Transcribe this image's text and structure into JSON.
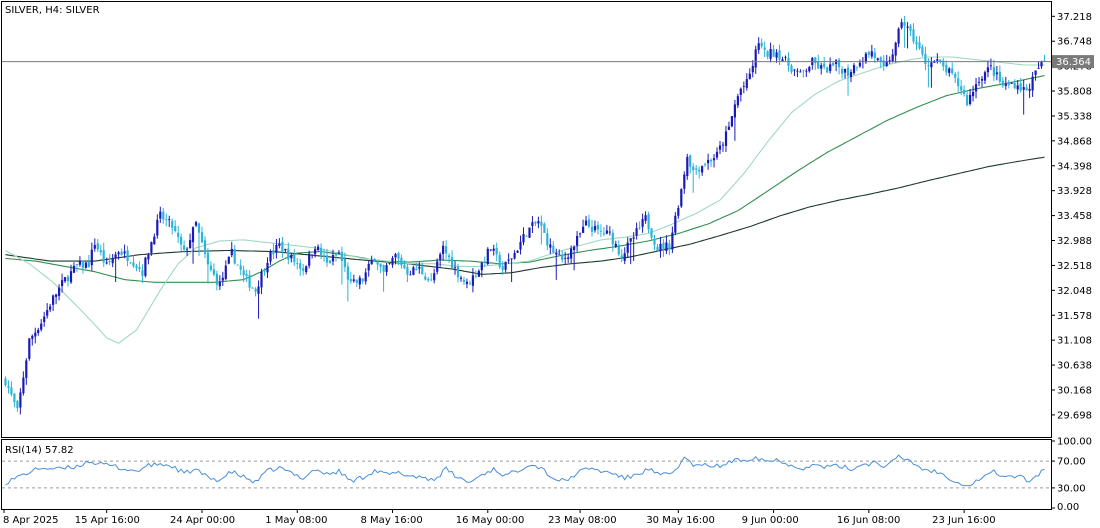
{
  "header": {
    "symbol_title": "SILVER, H4:  SILVER"
  },
  "current_price": "36.364",
  "colors": {
    "bull": "#1a1ab8",
    "bear": "#2bb4d8",
    "ma_fast": "#9fd9c0",
    "ma_mid": "#2f8f50",
    "ma_slow": "#1f3a2a",
    "rsi_line": "#4a8fd9",
    "price_line": "#7a7a7a",
    "frame": "#000000"
  },
  "chart_data": [
    {
      "type": "candlestick",
      "title": "SILVER, H4:  SILVER",
      "ylim": [
        29.3,
        37.45
      ],
      "yticks": [
        "37.218",
        "36.748",
        "36.278",
        "35.808",
        "35.338",
        "34.868",
        "34.398",
        "33.928",
        "33.458",
        "32.988",
        "32.518",
        "32.048",
        "31.578",
        "31.108",
        "30.638",
        "30.168",
        "29.698"
      ],
      "xticks": [
        "8 Apr 2025",
        "15 Apr 16:00",
        "24 Apr 00:00",
        "1 May 08:00",
        "8 May 16:00",
        "16 May 00:00",
        "23 May 08:00",
        "30 May 16:00",
        "9 Jun 00:00",
        "16 Jun 08:00",
        "23 Jun 16:00"
      ],
      "close_path": [
        [
          0,
          30.35
        ],
        [
          4,
          29.75
        ],
        [
          8,
          31.1
        ],
        [
          12,
          31.45
        ],
        [
          16,
          31.9
        ],
        [
          20,
          32.25
        ],
        [
          24,
          32.5
        ],
        [
          28,
          32.55
        ],
        [
          30,
          32.95
        ],
        [
          34,
          32.5
        ],
        [
          38,
          32.8
        ],
        [
          42,
          32.65
        ],
        [
          46,
          32.4
        ],
        [
          50,
          33.15
        ],
        [
          52,
          33.45
        ],
        [
          56,
          33.25
        ],
        [
          60,
          32.75
        ],
        [
          64,
          33.3
        ],
        [
          68,
          32.5
        ],
        [
          72,
          32.15
        ],
        [
          76,
          32.75
        ],
        [
          80,
          32.3
        ],
        [
          84,
          32.05
        ],
        [
          88,
          32.65
        ],
        [
          92,
          32.9
        ],
        [
          96,
          32.65
        ],
        [
          100,
          32.45
        ],
        [
          104,
          32.9
        ],
        [
          108,
          32.55
        ],
        [
          112,
          32.75
        ],
        [
          116,
          32.15
        ],
        [
          120,
          32.25
        ],
        [
          124,
          32.7
        ],
        [
          127,
          32.35
        ],
        [
          131,
          32.7
        ],
        [
          135,
          32.4
        ],
        [
          139,
          32.45
        ],
        [
          143,
          32.2
        ],
        [
          147,
          32.85
        ],
        [
          151,
          32.45
        ],
        [
          155,
          32.15
        ],
        [
          159,
          32.45
        ],
        [
          163,
          32.85
        ],
        [
          167,
          32.45
        ],
        [
          171,
          32.75
        ],
        [
          175,
          33.15
        ],
        [
          179,
          33.35
        ],
        [
          183,
          32.85
        ],
        [
          187,
          32.6
        ],
        [
          191,
          32.9
        ],
        [
          195,
          33.3
        ],
        [
          199,
          33.15
        ],
        [
          203,
          33.1
        ],
        [
          207,
          32.7
        ],
        [
          211,
          33.05
        ],
        [
          215,
          33.4
        ],
        [
          219,
          32.85
        ],
        [
          223,
          32.9
        ],
        [
          227,
          33.95
        ],
        [
          229,
          34.6
        ],
        [
          231,
          34.3
        ],
        [
          235,
          34.45
        ],
        [
          239,
          34.6
        ],
        [
          243,
          35.1
        ],
        [
          245,
          35.55
        ],
        [
          247,
          35.85
        ],
        [
          249,
          35.95
        ],
        [
          251,
          36.3
        ],
        [
          253,
          36.75
        ],
        [
          255,
          36.5
        ],
        [
          259,
          36.55
        ],
        [
          263,
          36.3
        ],
        [
          267,
          36.1
        ],
        [
          271,
          36.35
        ],
        [
          275,
          36.2
        ],
        [
          279,
          36.3
        ],
        [
          283,
          36.15
        ],
        [
          287,
          36.4
        ],
        [
          291,
          36.55
        ],
        [
          295,
          36.2
        ],
        [
          299,
          36.65
        ],
        [
          301,
          37.15
        ],
        [
          305,
          36.8
        ],
        [
          309,
          36.35
        ],
        [
          313,
          36.35
        ],
        [
          317,
          36.15
        ],
        [
          321,
          35.85
        ],
        [
          323,
          35.6
        ],
        [
          327,
          36.05
        ],
        [
          331,
          36.25
        ],
        [
          335,
          35.9
        ],
        [
          339,
          35.95
        ],
        [
          343,
          35.8
        ],
        [
          347,
          36.25
        ],
        [
          349,
          36.364
        ]
      ],
      "ma_fast": [
        [
          0,
          32.8
        ],
        [
          8,
          32.55
        ],
        [
          16,
          32.2
        ],
        [
          24,
          31.75
        ],
        [
          30,
          31.4
        ],
        [
          34,
          31.15
        ],
        [
          38,
          31.05
        ],
        [
          44,
          31.3
        ],
        [
          52,
          32.05
        ],
        [
          58,
          32.55
        ],
        [
          64,
          32.85
        ],
        [
          72,
          32.98
        ],
        [
          80,
          33.0
        ],
        [
          88,
          32.95
        ],
        [
          96,
          32.9
        ],
        [
          104,
          32.85
        ],
        [
          112,
          32.75
        ],
        [
          120,
          32.65
        ],
        [
          128,
          32.6
        ],
        [
          136,
          32.55
        ],
        [
          144,
          32.55
        ],
        [
          152,
          32.5
        ],
        [
          160,
          32.5
        ],
        [
          168,
          32.55
        ],
        [
          176,
          32.6
        ],
        [
          184,
          32.75
        ],
        [
          192,
          32.88
        ],
        [
          200,
          33.0
        ],
        [
          208,
          33.05
        ],
        [
          216,
          33.12
        ],
        [
          224,
          33.3
        ],
        [
          232,
          33.5
        ],
        [
          240,
          33.75
        ],
        [
          248,
          34.25
        ],
        [
          256,
          34.85
        ],
        [
          264,
          35.4
        ],
        [
          272,
          35.75
        ],
        [
          280,
          36.0
        ],
        [
          288,
          36.15
        ],
        [
          296,
          36.3
        ],
        [
          304,
          36.4
        ],
        [
          310,
          36.45
        ],
        [
          318,
          36.45
        ],
        [
          326,
          36.4
        ],
        [
          334,
          36.35
        ],
        [
          342,
          36.3
        ],
        [
          349,
          36.3
        ]
      ],
      "ma_mid": [
        [
          0,
          32.65
        ],
        [
          10,
          32.6
        ],
        [
          20,
          32.5
        ],
        [
          30,
          32.4
        ],
        [
          40,
          32.25
        ],
        [
          50,
          32.2
        ],
        [
          60,
          32.2
        ],
        [
          70,
          32.2
        ],
        [
          80,
          32.25
        ],
        [
          86,
          32.4
        ],
        [
          92,
          32.6
        ],
        [
          98,
          32.75
        ],
        [
          106,
          32.78
        ],
        [
          116,
          32.7
        ],
        [
          126,
          32.6
        ],
        [
          136,
          32.58
        ],
        [
          146,
          32.62
        ],
        [
          156,
          32.6
        ],
        [
          166,
          32.55
        ],
        [
          176,
          32.58
        ],
        [
          186,
          32.7
        ],
        [
          196,
          32.8
        ],
        [
          206,
          32.88
        ],
        [
          216,
          32.98
        ],
        [
          226,
          33.12
        ],
        [
          236,
          33.3
        ],
        [
          246,
          33.55
        ],
        [
          256,
          33.92
        ],
        [
          266,
          34.3
        ],
        [
          276,
          34.65
        ],
        [
          286,
          34.95
        ],
        [
          296,
          35.25
        ],
        [
          306,
          35.5
        ],
        [
          316,
          35.72
        ],
        [
          326,
          35.85
        ],
        [
          336,
          35.95
        ],
        [
          349,
          36.1
        ]
      ],
      "ma_slow": [
        [
          0,
          32.72
        ],
        [
          15,
          32.6
        ],
        [
          30,
          32.6
        ],
        [
          45,
          32.72
        ],
        [
          60,
          32.78
        ],
        [
          75,
          32.8
        ],
        [
          90,
          32.78
        ],
        [
          105,
          32.7
        ],
        [
          120,
          32.62
        ],
        [
          135,
          32.55
        ],
        [
          150,
          32.45
        ],
        [
          160,
          32.35
        ],
        [
          170,
          32.38
        ],
        [
          180,
          32.48
        ],
        [
          190,
          32.55
        ],
        [
          200,
          32.6
        ],
        [
          210,
          32.68
        ],
        [
          220,
          32.8
        ],
        [
          230,
          32.92
        ],
        [
          240,
          33.08
        ],
        [
          250,
          33.25
        ],
        [
          260,
          33.45
        ],
        [
          270,
          33.62
        ],
        [
          280,
          33.75
        ],
        [
          290,
          33.86
        ],
        [
          300,
          33.98
        ],
        [
          310,
          34.12
        ],
        [
          320,
          34.25
        ],
        [
          330,
          34.38
        ],
        [
          340,
          34.48
        ],
        [
          349,
          34.56
        ]
      ]
    },
    {
      "type": "line",
      "title": "RSI(14) 57.82",
      "ylim": [
        0,
        100
      ],
      "yticks": [
        "100.00",
        "70.00",
        "30.00",
        "0.00"
      ],
      "levels": [
        70,
        30
      ],
      "values_path": [
        [
          0,
          38
        ],
        [
          6,
          50
        ],
        [
          12,
          60
        ],
        [
          18,
          58
        ],
        [
          24,
          62
        ],
        [
          28,
          70
        ],
        [
          32,
          65
        ],
        [
          36,
          63
        ],
        [
          40,
          58
        ],
        [
          44,
          55
        ],
        [
          48,
          63
        ],
        [
          52,
          66
        ],
        [
          56,
          62
        ],
        [
          60,
          52
        ],
        [
          64,
          57
        ],
        [
          68,
          45
        ],
        [
          72,
          42
        ],
        [
          76,
          54
        ],
        [
          80,
          46
        ],
        [
          84,
          38
        ],
        [
          88,
          55
        ],
        [
          92,
          60
        ],
        [
          96,
          52
        ],
        [
          100,
          45
        ],
        [
          104,
          58
        ],
        [
          108,
          50
        ],
        [
          112,
          55
        ],
        [
          116,
          40
        ],
        [
          120,
          46
        ],
        [
          124,
          56
        ],
        [
          128,
          50
        ],
        [
          132,
          52
        ],
        [
          136,
          48
        ],
        [
          140,
          46
        ],
        [
          144,
          42
        ],
        [
          148,
          58
        ],
        [
          152,
          45
        ],
        [
          156,
          38
        ],
        [
          160,
          50
        ],
        [
          164,
          58
        ],
        [
          168,
          48
        ],
        [
          172,
          56
        ],
        [
          176,
          66
        ],
        [
          180,
          60
        ],
        [
          184,
          44
        ],
        [
          188,
          40
        ],
        [
          192,
          52
        ],
        [
          196,
          60
        ],
        [
          200,
          55
        ],
        [
          204,
          52
        ],
        [
          208,
          44
        ],
        [
          212,
          50
        ],
        [
          216,
          58
        ],
        [
          220,
          48
        ],
        [
          224,
          52
        ],
        [
          228,
          74
        ],
        [
          232,
          62
        ],
        [
          236,
          64
        ],
        [
          240,
          62
        ],
        [
          244,
          70
        ],
        [
          248,
          72
        ],
        [
          252,
          76
        ],
        [
          256,
          70
        ],
        [
          260,
          72
        ],
        [
          264,
          63
        ],
        [
          268,
          60
        ],
        [
          272,
          64
        ],
        [
          276,
          61
        ],
        [
          280,
          63
        ],
        [
          284,
          58
        ],
        [
          288,
          65
        ],
        [
          292,
          68
        ],
        [
          296,
          62
        ],
        [
          300,
          76
        ],
        [
          304,
          70
        ],
        [
          308,
          58
        ],
        [
          312,
          55
        ],
        [
          316,
          48
        ],
        [
          320,
          38
        ],
        [
          324,
          34
        ],
        [
          328,
          46
        ],
        [
          332,
          54
        ],
        [
          336,
          46
        ],
        [
          340,
          48
        ],
        [
          344,
          40
        ],
        [
          349,
          57.82
        ]
      ]
    }
  ]
}
